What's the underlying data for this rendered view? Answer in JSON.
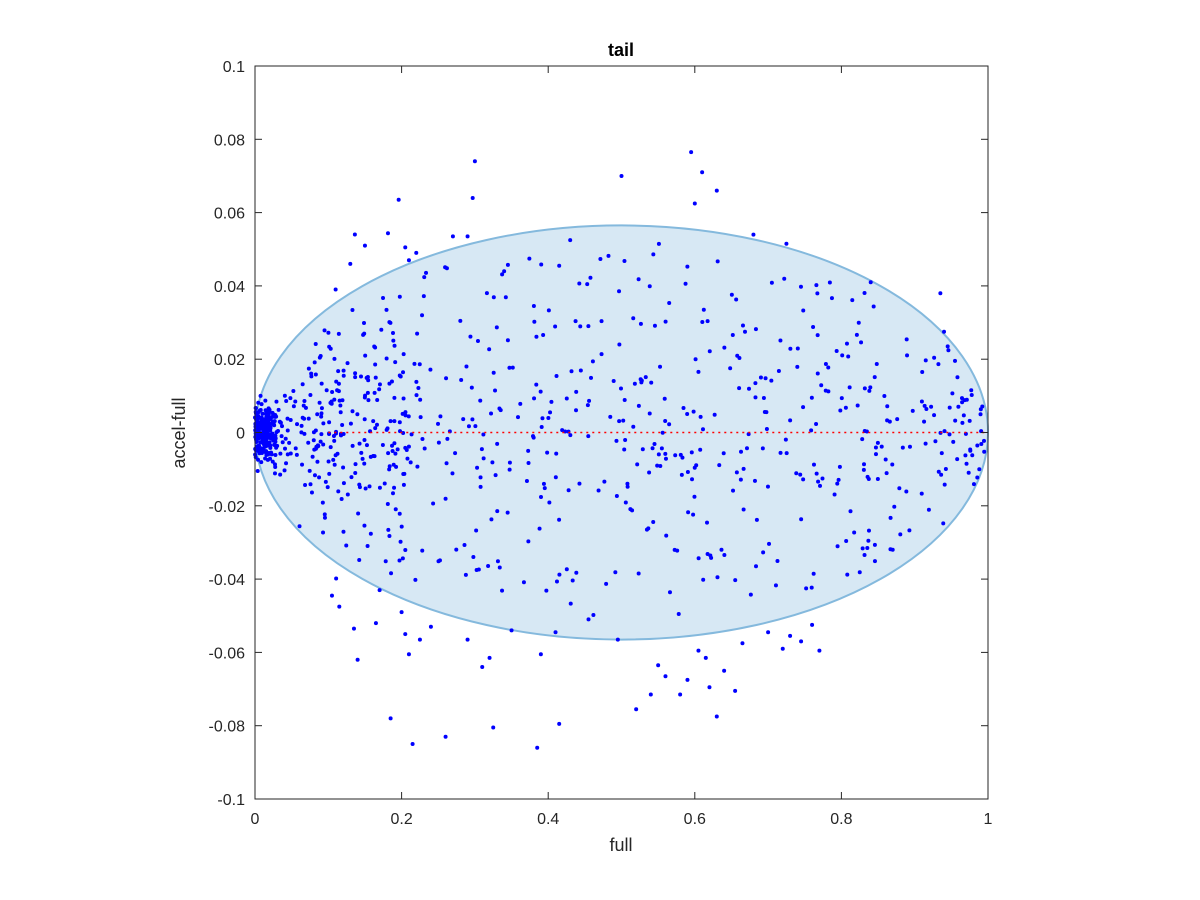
{
  "chart_data": {
    "type": "scatter",
    "title": "tail",
    "xlabel": "full",
    "ylabel": "accel-full",
    "xlim": [
      0,
      1
    ],
    "ylim": [
      -0.1,
      0.1
    ],
    "xticks": [
      "0",
      "0.2",
      "0.4",
      "0.6",
      "0.8",
      "1"
    ],
    "yticks": [
      "0.1",
      "0.08",
      "0.06",
      "0.04",
      "0.02",
      "0",
      "-0.02",
      "-0.04",
      "-0.06",
      "-0.08",
      "-0.1"
    ],
    "grid": false,
    "colors": {
      "points": "#0000ff",
      "ellipse_fill": "#d7e8f4",
      "ellipse_edge": "#84b9dd",
      "reference_line": "#ff0000"
    },
    "ellipse": {
      "center": [
        0.5,
        0.0
      ],
      "x_semi_axis": 0.5,
      "y_semi_axis": 0.0565
    },
    "reference_line": {
      "y": 0,
      "x_start": 0.1,
      "x_end": 1.0,
      "style": "dotted"
    },
    "outlier_points": [
      [
        0.3,
        0.074
      ],
      [
        0.196,
        0.0635
      ],
      [
        0.297,
        0.064
      ],
      [
        0.5,
        0.07
      ],
      [
        0.595,
        0.0765
      ],
      [
        0.61,
        0.071
      ],
      [
        0.63,
        0.066
      ],
      [
        0.6,
        0.0625
      ],
      [
        0.68,
        0.054
      ],
      [
        0.725,
        0.0515
      ],
      [
        0.84,
        0.041
      ],
      [
        0.935,
        0.038
      ],
      [
        0.94,
        0.0275
      ],
      [
        0.945,
        0.0235
      ],
      [
        0.13,
        0.046
      ],
      [
        0.15,
        0.051
      ],
      [
        0.11,
        0.039
      ],
      [
        0.27,
        0.0535
      ],
      [
        0.29,
        0.0535
      ],
      [
        0.43,
        0.0525
      ],
      [
        0.415,
        0.0455
      ],
      [
        0.21,
        0.047
      ],
      [
        0.205,
        0.0505
      ],
      [
        0.22,
        0.049
      ],
      [
        0.105,
        -0.0445
      ],
      [
        0.115,
        -0.0475
      ],
      [
        0.135,
        -0.0535
      ],
      [
        0.14,
        -0.062
      ],
      [
        0.165,
        -0.052
      ],
      [
        0.17,
        -0.043
      ],
      [
        0.185,
        -0.078
      ],
      [
        0.2,
        -0.049
      ],
      [
        0.205,
        -0.055
      ],
      [
        0.21,
        -0.0605
      ],
      [
        0.215,
        -0.085
      ],
      [
        0.225,
        -0.0565
      ],
      [
        0.24,
        -0.053
      ],
      [
        0.26,
        -0.083
      ],
      [
        0.29,
        -0.0565
      ],
      [
        0.31,
        -0.064
      ],
      [
        0.32,
        -0.0615
      ],
      [
        0.325,
        -0.0805
      ],
      [
        0.35,
        -0.054
      ],
      [
        0.385,
        -0.086
      ],
      [
        0.39,
        -0.0605
      ],
      [
        0.41,
        -0.0545
      ],
      [
        0.415,
        -0.0795
      ],
      [
        0.455,
        -0.051
      ],
      [
        0.495,
        -0.0565
      ],
      [
        0.52,
        -0.0755
      ],
      [
        0.54,
        -0.0715
      ],
      [
        0.55,
        -0.0635
      ],
      [
        0.56,
        -0.0665
      ],
      [
        0.58,
        -0.0715
      ],
      [
        0.59,
        -0.0675
      ],
      [
        0.605,
        -0.0595
      ],
      [
        0.615,
        -0.0615
      ],
      [
        0.62,
        -0.0695
      ],
      [
        0.63,
        -0.0775
      ],
      [
        0.64,
        -0.065
      ],
      [
        0.655,
        -0.0705
      ],
      [
        0.665,
        -0.0575
      ],
      [
        0.7,
        -0.0545
      ],
      [
        0.72,
        -0.059
      ],
      [
        0.745,
        -0.057
      ],
      [
        0.76,
        -0.0525
      ],
      [
        0.77,
        -0.0595
      ],
      [
        0.73,
        -0.0555
      ]
    ],
    "point_cloud_note": "about 1000 blue points; dense cluster near x=0 with |y|<=0.01, widening spread up to |y|~0.05 inside the ellipse, centered on y=0"
  }
}
